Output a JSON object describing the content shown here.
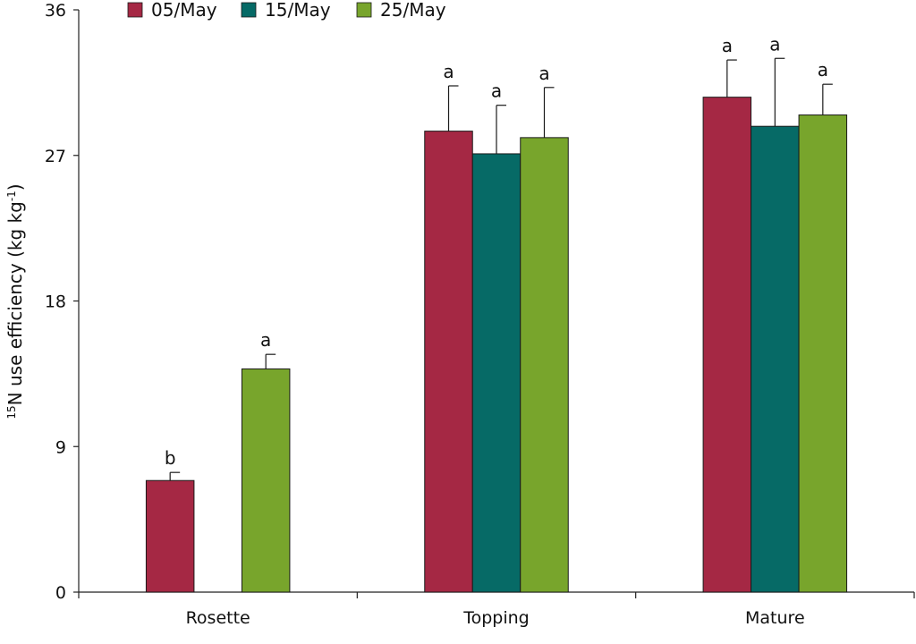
{
  "chart_data": {
    "type": "bar",
    "categories": [
      "Rosette",
      "Topping",
      "Mature"
    ],
    "series": [
      {
        "name": "05/May",
        "color": "#a52844",
        "values": [
          6.9,
          28.5,
          30.6
        ],
        "errors": [
          0.5,
          2.8,
          2.3
        ],
        "letters": [
          "b",
          "a",
          "a"
        ]
      },
      {
        "name": "15/May",
        "color": "#066a66",
        "values": [
          null,
          27.1,
          28.8
        ],
        "errors": [
          null,
          3.0,
          4.2
        ],
        "letters": [
          null,
          "a",
          "a"
        ]
      },
      {
        "name": "25/May",
        "color": "#78a52c",
        "values": [
          13.8,
          28.1,
          29.5
        ],
        "errors": [
          0.9,
          3.1,
          1.9
        ],
        "letters": [
          "a",
          "a",
          "a"
        ]
      }
    ],
    "ylabel": {
      "sup1": "15",
      "part1": "N use efficiency (kg kg",
      "sup2": "-1",
      "part2": ")"
    },
    "ylim": [
      0,
      36
    ],
    "yticks": [
      0,
      9,
      18,
      27,
      36
    ],
    "legend_position": "top",
    "grid": false
  }
}
